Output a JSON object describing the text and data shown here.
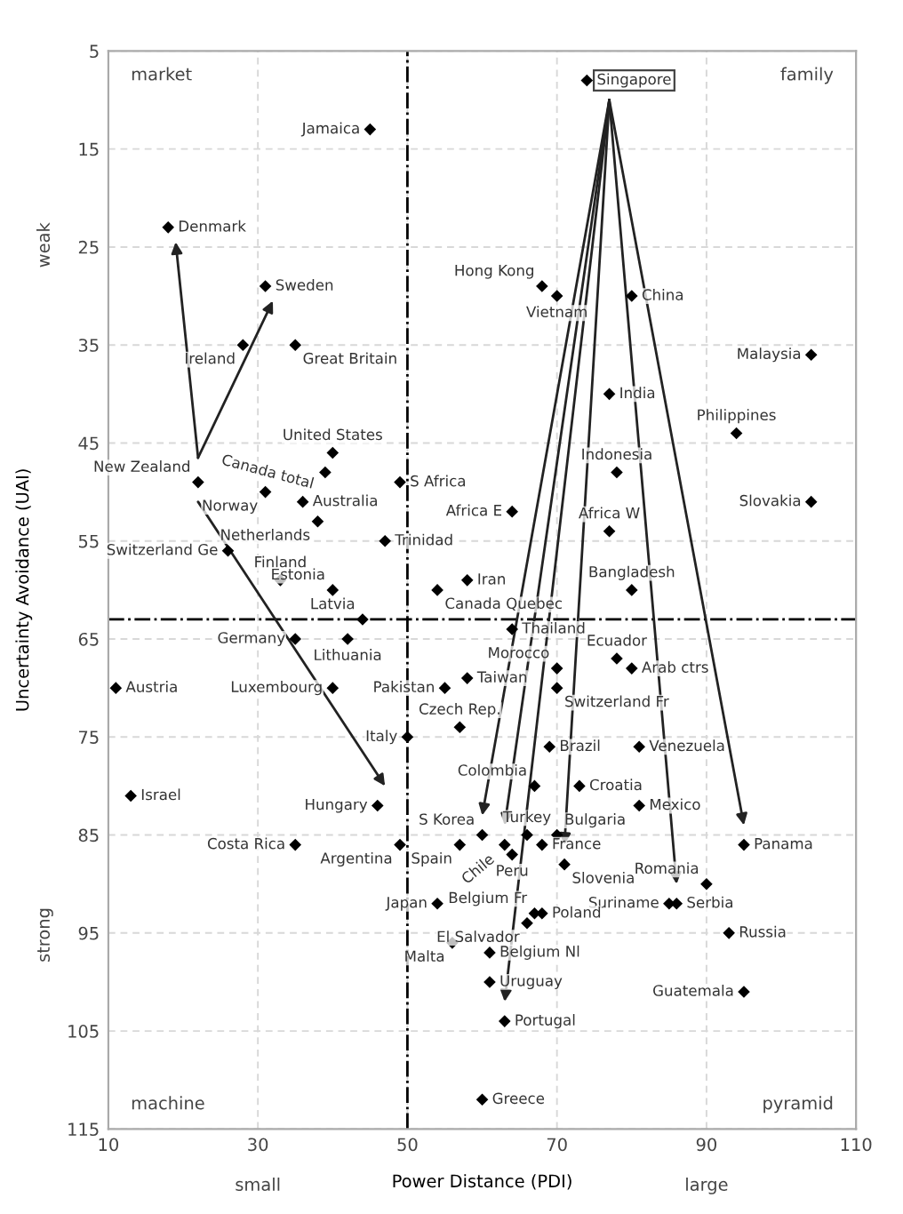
{
  "chart_data": {
    "type": "scatter",
    "xlabel": "Power Distance (PDI)",
    "ylabel": "Uncertainty Avoidance (UAI)",
    "xlim": [
      10,
      110
    ],
    "ylim": [
      115,
      5
    ],
    "xticks": [
      10,
      30,
      50,
      70,
      90,
      110
    ],
    "yticks": [
      5,
      15,
      25,
      35,
      45,
      55,
      65,
      75,
      85,
      95,
      105,
      115
    ],
    "grid": true,
    "marker": "diamond",
    "series": [
      {
        "color": "#000000",
        "x": [
          74,
          45,
          18,
          31,
          28,
          35,
          68,
          70,
          80,
          104,
          77,
          94,
          40,
          39,
          22,
          49,
          78,
          31,
          36,
          64,
          104,
          77,
          38,
          47,
          26,
          33,
          40,
          58,
          54,
          80,
          44,
          64,
          35,
          42,
          78,
          70,
          80,
          11,
          40,
          55,
          58,
          70,
          57,
          50,
          69,
          81,
          67,
          73,
          13,
          46,
          81,
          60,
          66,
          70,
          35,
          49,
          57,
          63,
          68,
          95,
          64,
          71,
          90,
          85,
          86,
          54,
          67,
          68,
          66,
          93,
          56,
          61,
          61,
          95,
          63,
          60
        ],
        "values": [
          8,
          13,
          23,
          29,
          35,
          35,
          29,
          30,
          30,
          36,
          40,
          44,
          46,
          48,
          49,
          49,
          48,
          50,
          51,
          52,
          51,
          54,
          53,
          55,
          56,
          59,
          60,
          59,
          60,
          60,
          63,
          64,
          65,
          65,
          67,
          68,
          68,
          70,
          70,
          70,
          69,
          70,
          74,
          75,
          76,
          76,
          80,
          80,
          81,
          82,
          82,
          85,
          85,
          85,
          86,
          86,
          86,
          86,
          86,
          86,
          87,
          88,
          90,
          92,
          92,
          92,
          93,
          93,
          94,
          95,
          96,
          97,
          100,
          101,
          104,
          112
        ]
      }
    ],
    "ref_lines": [
      {
        "axis": "x",
        "value": 50,
        "line_style": "dashdot",
        "color": "#000000"
      },
      {
        "axis": "y",
        "value": 63,
        "line_style": "dashdot",
        "color": "#000000"
      }
    ],
    "annotations": [
      {
        "text": "Singapore",
        "x": 74,
        "y": 8
      },
      {
        "text": "Jamaica",
        "x": 45,
        "y": 13
      },
      {
        "text": "Denmark",
        "x": 18,
        "y": 23
      },
      {
        "text": "Sweden",
        "x": 31,
        "y": 29
      },
      {
        "text": "Ireland",
        "x": 28,
        "y": 35
      },
      {
        "text": "Great Britain",
        "x": 35,
        "y": 35
      },
      {
        "text": "Hong Kong",
        "x": 68,
        "y": 29
      },
      {
        "text": "Vietnam",
        "x": 70,
        "y": 30
      },
      {
        "text": "China",
        "x": 80,
        "y": 30
      },
      {
        "text": "Malaysia",
        "x": 104,
        "y": 36
      },
      {
        "text": "India",
        "x": 77,
        "y": 40
      },
      {
        "text": "Philippines",
        "x": 94,
        "y": 44
      },
      {
        "text": "United States",
        "x": 40,
        "y": 46
      },
      {
        "text": "Canada total",
        "x": 39,
        "y": 48
      },
      {
        "text": "New Zealand",
        "x": 22,
        "y": 49
      },
      {
        "text": "S Africa",
        "x": 49,
        "y": 49
      },
      {
        "text": "Indonesia",
        "x": 78,
        "y": 48
      },
      {
        "text": "Norway",
        "x": 31,
        "y": 50
      },
      {
        "text": "Australia",
        "x": 36,
        "y": 51
      },
      {
        "text": "Africa E",
        "x": 64,
        "y": 52
      },
      {
        "text": "Slovakia",
        "x": 104,
        "y": 51
      },
      {
        "text": "Africa W",
        "x": 77,
        "y": 54
      },
      {
        "text": "Netherlands",
        "x": 38,
        "y": 53
      },
      {
        "text": "Trinidad",
        "x": 47,
        "y": 55
      },
      {
        "text": "Switzerland Ge",
        "x": 26,
        "y": 56
      },
      {
        "text": "Finland",
        "x": 33,
        "y": 59
      },
      {
        "text": "Estonia",
        "x": 40,
        "y": 60
      },
      {
        "text": "Iran",
        "x": 58,
        "y": 59
      },
      {
        "text": "Canada Quebec",
        "x": 54,
        "y": 60
      },
      {
        "text": "Bangladesh",
        "x": 80,
        "y": 60
      },
      {
        "text": "Latvia",
        "x": 44,
        "y": 63
      },
      {
        "text": "Thailand",
        "x": 64,
        "y": 64
      },
      {
        "text": "Germany",
        "x": 35,
        "y": 65
      },
      {
        "text": "Lithuania",
        "x": 42,
        "y": 65
      },
      {
        "text": "Ecuador",
        "x": 78,
        "y": 67
      },
      {
        "text": "Morocco",
        "x": 70,
        "y": 68
      },
      {
        "text": "Arab ctrs",
        "x": 80,
        "y": 68
      },
      {
        "text": "Austria",
        "x": 11,
        "y": 70
      },
      {
        "text": "Luxembourg",
        "x": 40,
        "y": 70
      },
      {
        "text": "Pakistan",
        "x": 55,
        "y": 70
      },
      {
        "text": "Taiwan",
        "x": 58,
        "y": 69
      },
      {
        "text": "Switzerland Fr",
        "x": 70,
        "y": 70
      },
      {
        "text": "Czech Rep.",
        "x": 57,
        "y": 74
      },
      {
        "text": "Italy",
        "x": 50,
        "y": 75
      },
      {
        "text": "Brazil",
        "x": 69,
        "y": 76
      },
      {
        "text": "Venezuela",
        "x": 81,
        "y": 76
      },
      {
        "text": "Colombia",
        "x": 67,
        "y": 80
      },
      {
        "text": "Croatia",
        "x": 73,
        "y": 80
      },
      {
        "text": "Israel",
        "x": 13,
        "y": 81
      },
      {
        "text": "Hungary",
        "x": 46,
        "y": 82
      },
      {
        "text": "Mexico",
        "x": 81,
        "y": 82
      },
      {
        "text": "S Korea",
        "x": 60,
        "y": 85
      },
      {
        "text": "Turkey",
        "x": 66,
        "y": 85
      },
      {
        "text": "Bulgaria",
        "x": 70,
        "y": 85
      },
      {
        "text": "Costa Rica",
        "x": 35,
        "y": 86
      },
      {
        "text": "Argentina",
        "x": 49,
        "y": 86
      },
      {
        "text": "Spain",
        "x": 57,
        "y": 86
      },
      {
        "text": "Chile",
        "x": 63,
        "y": 86
      },
      {
        "text": "France",
        "x": 68,
        "y": 86
      },
      {
        "text": "Panama",
        "x": 95,
        "y": 86
      },
      {
        "text": "Peru",
        "x": 64,
        "y": 87
      },
      {
        "text": "Slovenia",
        "x": 71,
        "y": 88
      },
      {
        "text": "Romania",
        "x": 90,
        "y": 90
      },
      {
        "text": "Suriname",
        "x": 85,
        "y": 92
      },
      {
        "text": "Serbia",
        "x": 86,
        "y": 92
      },
      {
        "text": "Japan",
        "x": 54,
        "y": 92
      },
      {
        "text": "Belgium Fr",
        "x": 67,
        "y": 93
      },
      {
        "text": "Poland",
        "x": 68,
        "y": 93
      },
      {
        "text": "El Salvador",
        "x": 66,
        "y": 94
      },
      {
        "text": "Russia",
        "x": 93,
        "y": 95
      },
      {
        "text": "Malta",
        "x": 56,
        "y": 96
      },
      {
        "text": "Belgium Nl",
        "x": 61,
        "y": 97
      },
      {
        "text": "Uruguay",
        "x": 61,
        "y": 100
      },
      {
        "text": "Guatemala",
        "x": 95,
        "y": 101
      },
      {
        "text": "Portugal",
        "x": 63,
        "y": 104
      },
      {
        "text": "Greece",
        "x": 60,
        "y": 112
      },
      "market",
      "family",
      "machine",
      "pyramid",
      "small",
      "large",
      "weak",
      "strong"
    ]
  }
}
